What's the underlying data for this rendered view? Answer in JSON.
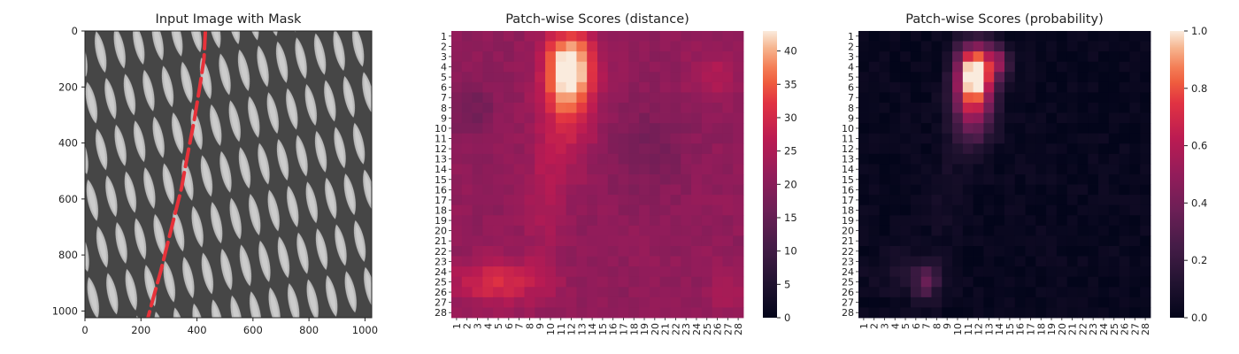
{
  "chart_data": [
    {
      "type": "image",
      "title": "Input Image with Mask",
      "xlim": [
        0,
        1024
      ],
      "ylim": [
        1024,
        0
      ],
      "xticks": [
        0,
        200,
        400,
        600,
        800,
        1000
      ],
      "yticks": [
        0,
        200,
        400,
        600,
        800,
        1000
      ],
      "image_description_colors": {
        "background": "#a9a9a9",
        "mesh": "#3c3c3c",
        "mask": "#e8323a"
      },
      "mask_path_points": [
        [
          430,
          0
        ],
        [
          425,
          100
        ],
        [
          410,
          200
        ],
        [
          390,
          320
        ],
        [
          365,
          450
        ],
        [
          345,
          560
        ],
        [
          320,
          660
        ],
        [
          295,
          760
        ],
        [
          270,
          860
        ],
        [
          245,
          950
        ],
        [
          225,
          1024
        ]
      ]
    },
    {
      "type": "heatmap",
      "title": "Patch-wise Scores (distance)",
      "rows": 28,
      "cols": 28,
      "row_labels": [
        "1",
        "2",
        "3",
        "4",
        "5",
        "6",
        "7",
        "8",
        "9",
        "10",
        "11",
        "12",
        "13",
        "14",
        "15",
        "16",
        "17",
        "18",
        "19",
        "20",
        "21",
        "22",
        "23",
        "24",
        "25",
        "26",
        "27",
        "28"
      ],
      "col_labels": [
        "1",
        "2",
        "3",
        "4",
        "5",
        "6",
        "7",
        "8",
        "9",
        "10",
        "11",
        "12",
        "13",
        "14",
        "15",
        "16",
        "17",
        "18",
        "19",
        "20",
        "21",
        "22",
        "23",
        "24",
        "25",
        "26",
        "27",
        "28"
      ],
      "colorbar": {
        "min": 0,
        "max": 43,
        "ticks": [
          0,
          5,
          10,
          15,
          20,
          25,
          30,
          35,
          40
        ]
      },
      "colormap": "rocket",
      "baseline_value": 21,
      "hotspots": [
        {
          "row": 4,
          "col": 11.8,
          "amplitude": 21,
          "sigma_row": 2.6,
          "sigma_col": 1.6
        },
        {
          "row": 8,
          "col": 11.8,
          "amplitude": 9,
          "sigma_row": 4,
          "sigma_col": 1.8
        },
        {
          "row": 17,
          "col": 9.5,
          "amplitude": 4,
          "sigma_row": 5,
          "sigma_col": 1.2
        },
        {
          "row": 25,
          "col": 5,
          "amplitude": 10,
          "sigma_row": 1.5,
          "sigma_col": 3
        },
        {
          "row": 5,
          "col": 25.5,
          "amplitude": 5,
          "sigma_row": 1.5,
          "sigma_col": 1.5
        },
        {
          "row": 26,
          "col": 27,
          "amplitude": 4,
          "sigma_row": 1.5,
          "sigma_col": 1.2
        },
        {
          "row": 8,
          "col": 2.5,
          "amplitude": -4,
          "sigma_row": 2,
          "sigma_col": 1.5
        },
        {
          "row": 12,
          "col": 19,
          "amplitude": -3.5,
          "sigma_row": 3,
          "sigma_col": 3
        }
      ]
    },
    {
      "type": "heatmap",
      "title": "Patch-wise Scores (probability)",
      "rows": 28,
      "cols": 28,
      "row_labels": [
        "1",
        "2",
        "3",
        "4",
        "5",
        "6",
        "7",
        "8",
        "9",
        "10",
        "11",
        "12",
        "13",
        "14",
        "15",
        "16",
        "17",
        "18",
        "19",
        "20",
        "21",
        "22",
        "23",
        "24",
        "25",
        "26",
        "27",
        "28"
      ],
      "col_labels": [
        "1",
        "2",
        "3",
        "4",
        "5",
        "6",
        "7",
        "8",
        "9",
        "10",
        "11",
        "12",
        "13",
        "14",
        "15",
        "16",
        "17",
        "18",
        "19",
        "20",
        "21",
        "22",
        "23",
        "24",
        "25",
        "26",
        "27",
        "28"
      ],
      "colorbar": {
        "min": 0,
        "max": 1.0,
        "ticks": [
          0.0,
          0.2,
          0.4,
          0.6,
          0.8,
          1.0
        ],
        "tick_labels": [
          "0.0",
          "0.2",
          "0.4",
          "0.6",
          "0.8",
          "1.0"
        ]
      },
      "colormap": "rocket",
      "baseline_value": 0.02,
      "hotspots": [
        {
          "row": 4.5,
          "col": 11.7,
          "amplitude": 0.98,
          "sigma_row": 1.9,
          "sigma_col": 1.2
        },
        {
          "row": 8,
          "col": 11.5,
          "amplitude": 0.5,
          "sigma_row": 2.5,
          "sigma_col": 1.4
        },
        {
          "row": 3.5,
          "col": 14,
          "amplitude": 0.35,
          "sigma_row": 1,
          "sigma_col": 0.8
        },
        {
          "row": 25,
          "col": 7,
          "amplitude": 0.3,
          "sigma_row": 1.3,
          "sigma_col": 0.9
        },
        {
          "row": 24,
          "col": 4.5,
          "amplitude": 0.08,
          "sigma_row": 1.5,
          "sigma_col": 2
        },
        {
          "row": 17,
          "col": 9,
          "amplitude": 0.05,
          "sigma_row": 4,
          "sigma_col": 1
        }
      ]
    }
  ]
}
